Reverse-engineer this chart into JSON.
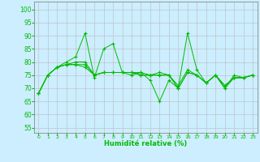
{
  "title": "",
  "xlabel": "Humidité relative (%)",
  "ylabel": "",
  "background_color": "#cceeff",
  "grid_color": "#bbbbbb",
  "line_color": "#00bb00",
  "xlim": [
    -0.5,
    23.5
  ],
  "ylim": [
    53,
    103
  ],
  "yticks": [
    55,
    60,
    65,
    70,
    75,
    80,
    85,
    90,
    95,
    100
  ],
  "xticks": [
    0,
    1,
    2,
    3,
    4,
    5,
    6,
    7,
    8,
    9,
    10,
    11,
    12,
    13,
    14,
    15,
    16,
    17,
    18,
    19,
    20,
    21,
    22,
    23
  ],
  "series": [
    [
      68,
      75,
      78,
      80,
      82,
      91,
      74,
      85,
      87,
      76,
      75,
      76,
      73,
      65,
      73,
      70,
      91,
      77,
      72,
      75,
      70,
      75,
      74,
      75
    ],
    [
      68,
      75,
      78,
      79,
      80,
      80,
      75,
      76,
      76,
      76,
      76,
      75,
      75,
      76,
      75,
      71,
      77,
      75,
      72,
      75,
      71,
      74,
      74,
      75
    ],
    [
      68,
      75,
      78,
      79,
      79,
      79,
      75,
      76,
      76,
      76,
      76,
      75,
      75,
      75,
      75,
      70,
      76,
      75,
      72,
      75,
      71,
      74,
      74,
      75
    ],
    [
      68,
      75,
      78,
      79,
      79,
      78,
      75,
      76,
      76,
      76,
      76,
      76,
      75,
      75,
      75,
      70,
      76,
      75,
      72,
      75,
      70,
      74,
      74,
      75
    ]
  ]
}
